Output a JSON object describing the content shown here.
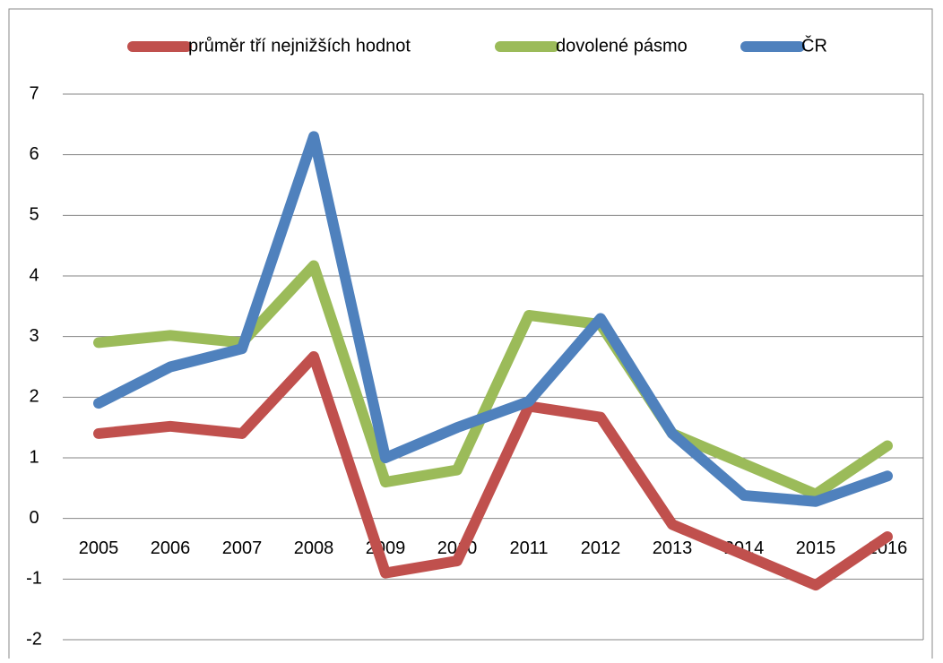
{
  "chart_data": {
    "type": "line",
    "categories": [
      "2005",
      "2006",
      "2007",
      "2008",
      "2009",
      "2010",
      "2011",
      "2012",
      "2013",
      "2014",
      "2015",
      "2016"
    ],
    "series": [
      {
        "name": "průměr tří nejnižších hodnot",
        "color": "#c0504d",
        "values": [
          1.4,
          1.52,
          1.4,
          2.67,
          -0.9,
          -0.7,
          1.85,
          1.67,
          -0.1,
          -0.6,
          -1.1,
          -0.3
        ]
      },
      {
        "name": "dovolené pásmo",
        "color": "#9bbb59",
        "values": [
          2.9,
          3.02,
          2.9,
          4.17,
          0.6,
          0.8,
          3.35,
          3.2,
          1.4,
          0.9,
          0.4,
          1.2
        ]
      },
      {
        "name": "ČR",
        "color": "#4f81bd",
        "values": [
          1.9,
          2.5,
          2.8,
          6.3,
          1.0,
          1.5,
          1.93,
          3.3,
          1.4,
          0.38,
          0.28,
          0.7
        ]
      }
    ],
    "ylim": [
      -2,
      7
    ],
    "yticks": [
      -2,
      -1,
      0,
      1,
      2,
      3,
      4,
      5,
      6,
      7
    ],
    "grid": true,
    "legend": "top"
  }
}
